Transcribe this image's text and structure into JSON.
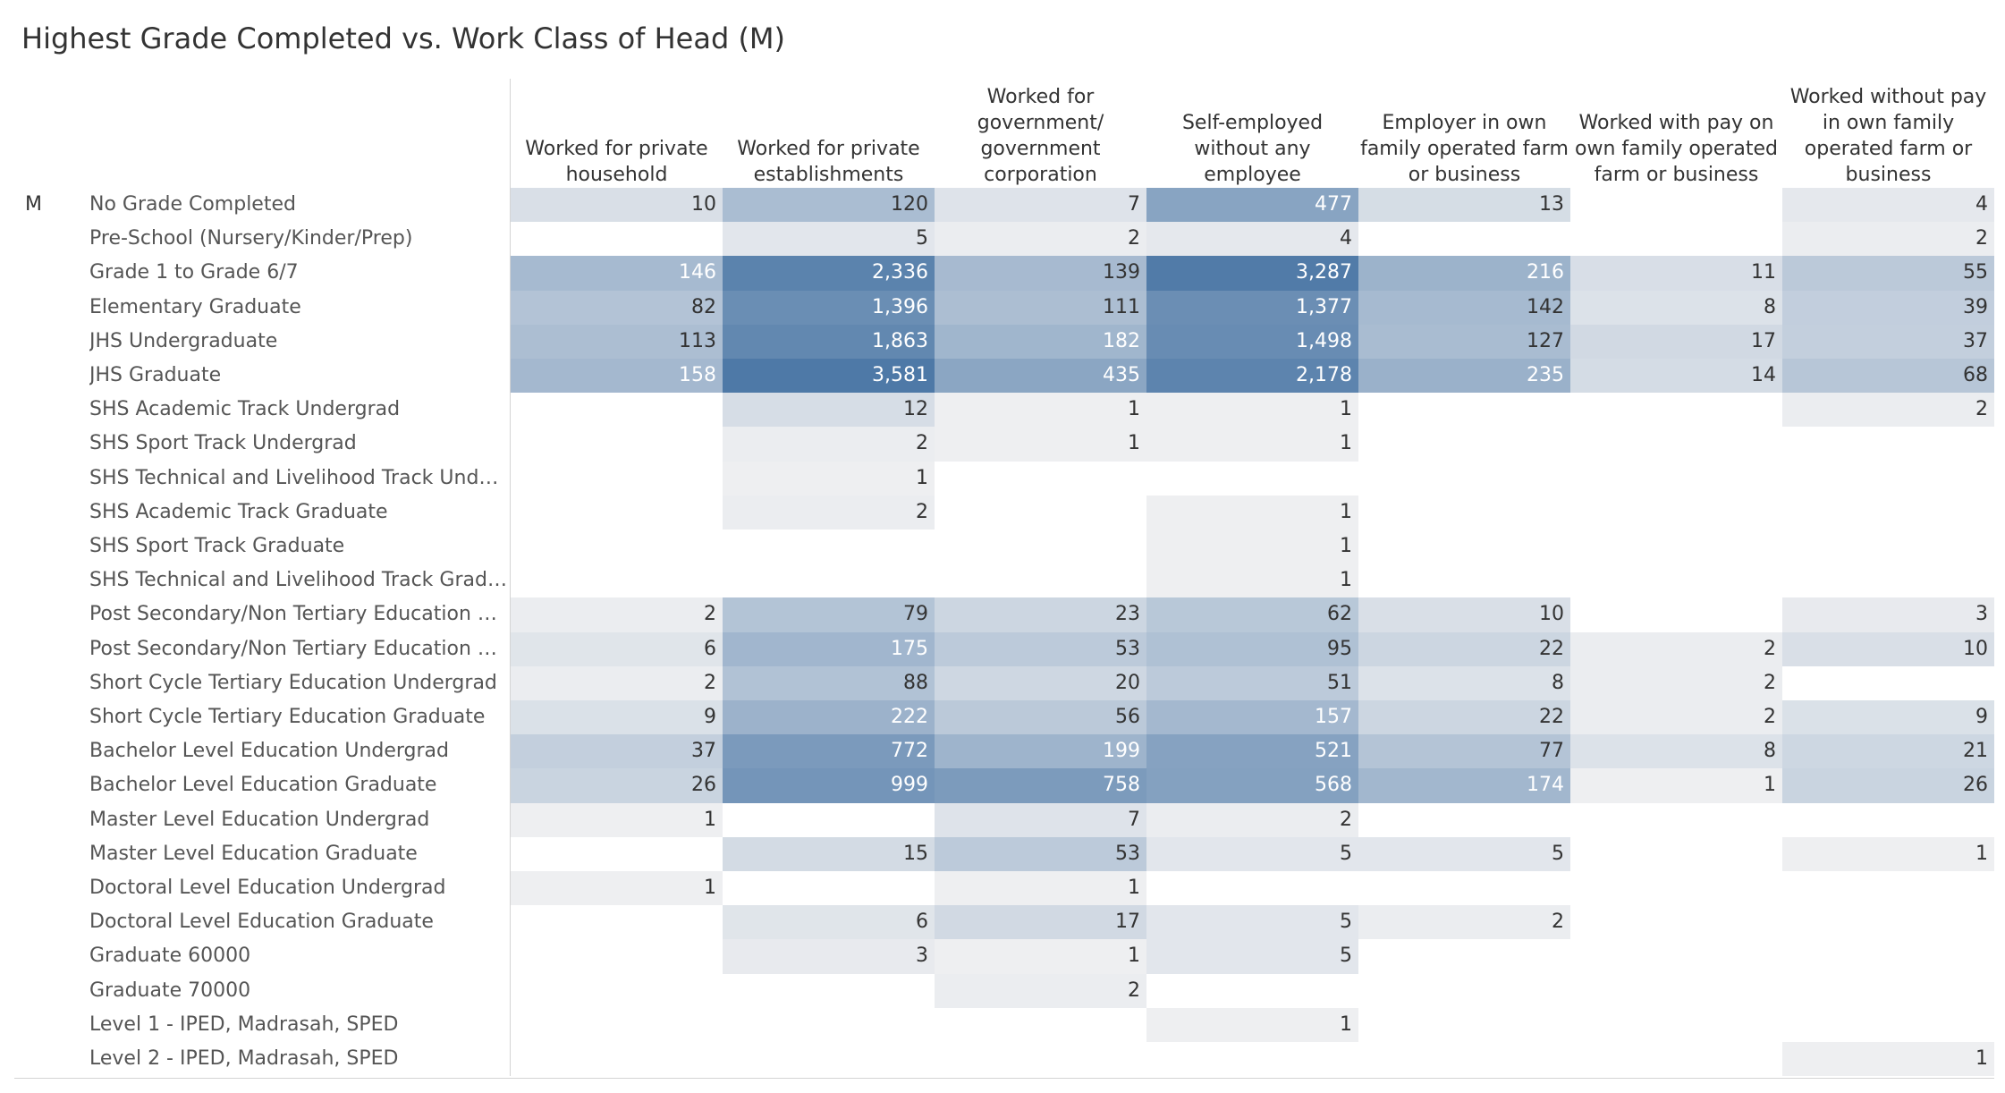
{
  "title": "Highest Grade Completed vs. Work Class of Head (M)",
  "chart_data": {
    "type": "table",
    "title": "Highest Grade Completed vs. Work Class of Head (M)",
    "row_group": "M",
    "columns": [
      "Worked for private household",
      "Worked for private establishments",
      "Worked for government/ government corporation",
      "Self-employed without any employee",
      "Employer in own family operated farm or business",
      "Worked with pay on own family operated farm or business",
      "Worked without pay in own family operated farm or business"
    ],
    "column_lines": [
      [
        "Worked for private",
        "household"
      ],
      [
        "Worked for private",
        "establishments"
      ],
      [
        "Worked for",
        "government/",
        "government",
        "corporation"
      ],
      [
        "Self-employed",
        "without any employee"
      ],
      [
        "Employer in own",
        "family operated farm",
        "or business"
      ],
      [
        "Worked with pay on",
        "own family operated",
        "farm or business"
      ],
      [
        "Worked without pay",
        "in own family",
        "operated farm or",
        "business"
      ]
    ],
    "rows": [
      "No Grade Completed",
      "Pre-School (Nursery/Kinder/Prep)",
      "Grade 1 to Grade 6/7",
      "Elementary Graduate",
      "JHS Undergraduate",
      "JHS Graduate",
      "SHS Academic Track Undergrad",
      "SHS Sport Track Undergrad",
      "SHS Technical and Livelihood Track Undergr..",
      "SHS Academic Track Graduate",
      "SHS Sport Track Graduate",
      "SHS Technical and Livelihood Track Graduate",
      "Post Secondary/Non Tertiary Education Und..",
      "Post Secondary/Non Tertiary Education Gra..",
      "Short Cycle Tertiary Education Undergrad",
      "Short Cycle Tertiary Education Graduate",
      "Bachelor Level Education Undergrad",
      "Bachelor Level Education Graduate",
      "Master Level Education Undergrad",
      "Master Level Education Graduate",
      "Doctoral Level Education Undergrad",
      "Doctoral Level Education Graduate",
      "Graduate 60000",
      "Graduate 70000",
      "Level 1 - IPED, Madrasah, SPED",
      "Level 2 - IPED, Madrasah, SPED"
    ],
    "values": [
      [
        10,
        120,
        7,
        477,
        13,
        null,
        4
      ],
      [
        null,
        5,
        2,
        4,
        null,
        null,
        2
      ],
      [
        146,
        2336,
        139,
        3287,
        216,
        11,
        55
      ],
      [
        82,
        1396,
        111,
        1377,
        142,
        8,
        39
      ],
      [
        113,
        1863,
        182,
        1498,
        127,
        17,
        37
      ],
      [
        158,
        3581,
        435,
        2178,
        235,
        14,
        68
      ],
      [
        null,
        12,
        1,
        1,
        null,
        null,
        2
      ],
      [
        null,
        2,
        1,
        1,
        null,
        null,
        null
      ],
      [
        null,
        1,
        null,
        null,
        null,
        null,
        null
      ],
      [
        null,
        2,
        null,
        1,
        null,
        null,
        null
      ],
      [
        null,
        null,
        null,
        1,
        null,
        null,
        null
      ],
      [
        null,
        null,
        null,
        1,
        null,
        null,
        null
      ],
      [
        2,
        79,
        23,
        62,
        10,
        null,
        3
      ],
      [
        6,
        175,
        53,
        95,
        22,
        2,
        10
      ],
      [
        2,
        88,
        20,
        51,
        8,
        2,
        null
      ],
      [
        9,
        222,
        56,
        157,
        22,
        2,
        9
      ],
      [
        37,
        772,
        199,
        521,
        77,
        8,
        21
      ],
      [
        26,
        999,
        758,
        568,
        174,
        1,
        26
      ],
      [
        1,
        null,
        7,
        2,
        null,
        null,
        null
      ],
      [
        null,
        15,
        53,
        5,
        5,
        null,
        1
      ],
      [
        1,
        null,
        1,
        null,
        null,
        null,
        null
      ],
      [
        null,
        6,
        17,
        5,
        2,
        null,
        null
      ],
      [
        null,
        3,
        1,
        5,
        null,
        null,
        null
      ],
      [
        null,
        null,
        2,
        null,
        null,
        null,
        null
      ],
      [
        null,
        null,
        null,
        1,
        null,
        null,
        null
      ],
      [
        null,
        null,
        null,
        null,
        null,
        null,
        1
      ]
    ],
    "color_scale": {
      "min": 1,
      "max": 3581,
      "low": "#eeeff1",
      "high": "#4e79a7"
    },
    "dark_text": "#333333",
    "light_text": "#ffffff"
  }
}
